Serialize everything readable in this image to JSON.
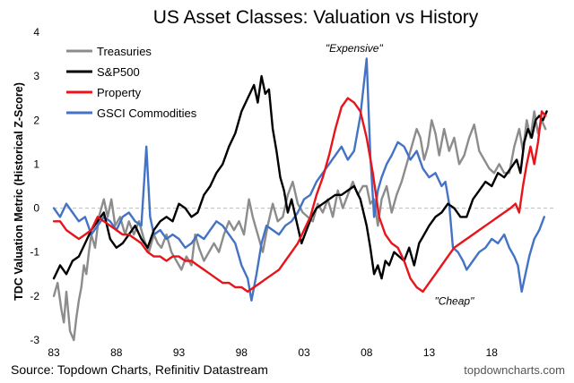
{
  "chart_data": {
    "type": "line",
    "title": "US Asset Classes: Valuation vs History",
    "ylabel": "TDC Valuation Metric (Historical Z-Score)",
    "xlabel": "",
    "xlim": [
      1983,
      2023
    ],
    "ylim": [
      -3,
      4
    ],
    "x_ticks": [
      {
        "value": 1983,
        "label": "83"
      },
      {
        "value": 1988,
        "label": "88"
      },
      {
        "value": 1993,
        "label": "93"
      },
      {
        "value": 1998,
        "label": "98"
      },
      {
        "value": 2003,
        "label": "03"
      },
      {
        "value": 2008,
        "label": "08"
      },
      {
        "value": 2013,
        "label": "13"
      },
      {
        "value": 2018,
        "label": "18"
      }
    ],
    "y_ticks": [
      {
        "value": 4,
        "label": "4"
      },
      {
        "value": 3,
        "label": "3"
      },
      {
        "value": 2,
        "label": "2"
      },
      {
        "value": 1,
        "label": "1"
      },
      {
        "value": 0,
        "label": "0"
      },
      {
        "value": -1,
        "label": "-1"
      },
      {
        "value": -2,
        "label": "-2"
      },
      {
        "value": -3,
        "label": "-3"
      }
    ],
    "legend_position": "top-left",
    "annotations": [
      {
        "text": "\"Expensive\"",
        "x": 2007,
        "y": 3.55
      },
      {
        "text": "\"Cheap\"",
        "x": 2015,
        "y": -2.2
      }
    ],
    "series": [
      {
        "name": "Treasuries",
        "color": "#8c8c8c",
        "x": [
          1983.0,
          1983.3,
          1983.6,
          1983.8,
          1984.0,
          1984.3,
          1984.6,
          1984.8,
          1985.0,
          1985.2,
          1985.4,
          1985.6,
          1985.8,
          1986.0,
          1986.3,
          1986.6,
          1987.0,
          1987.3,
          1987.6,
          1987.9,
          1988.3,
          1988.7,
          1989.0,
          1989.4,
          1989.8,
          1990.2,
          1990.6,
          1991.0,
          1991.3,
          1991.6,
          1992.0,
          1992.4,
          1992.8,
          1993.2,
          1993.6,
          1994.0,
          1994.3,
          1994.6,
          1995.0,
          1995.4,
          1995.8,
          1996.2,
          1996.6,
          1997.0,
          1997.4,
          1997.8,
          1998.2,
          1998.6,
          1998.9,
          1999.3,
          1999.7,
          2000.1,
          2000.5,
          2000.9,
          2001.3,
          2001.7,
          2002.1,
          2002.5,
          2002.9,
          2003.3,
          2003.7,
          2004.1,
          2004.5,
          2004.9,
          2005.3,
          2005.7,
          2006.1,
          2006.5,
          2006.9,
          2007.3,
          2007.7,
          2008.0,
          2008.3,
          2008.6,
          2008.9,
          2009.2,
          2009.6,
          2010.0,
          2010.4,
          2010.8,
          2011.2,
          2011.6,
          2012.0,
          2012.3,
          2012.6,
          2012.9,
          2013.2,
          2013.5,
          2013.8,
          2014.2,
          2014.6,
          2015.0,
          2015.4,
          2015.8,
          2016.2,
          2016.6,
          2017.0,
          2017.4,
          2017.8,
          2018.2,
          2018.6,
          2019.0,
          2019.4,
          2019.8,
          2020.2,
          2020.5,
          2020.8,
          2021.1,
          2021.4,
          2021.7,
          2022.0,
          2022.3
        ],
        "y": [
          -2.0,
          -1.7,
          -2.3,
          -2.6,
          -1.9,
          -2.8,
          -3.0,
          -2.5,
          -2.1,
          -1.8,
          -1.3,
          -1.5,
          -1.0,
          -0.6,
          -0.9,
          -0.2,
          0.2,
          -0.2,
          0.2,
          -0.4,
          -0.2,
          -0.6,
          -0.3,
          -0.6,
          -0.3,
          -0.7,
          -1.0,
          -0.6,
          -0.8,
          -0.9,
          -0.6,
          -1.0,
          -1.2,
          -1.4,
          -1.1,
          -1.3,
          -0.6,
          -0.9,
          -1.2,
          -1.0,
          -0.8,
          -1.0,
          -0.6,
          -0.3,
          -0.5,
          -0.3,
          -0.6,
          0.2,
          -0.2,
          -0.6,
          -1.0,
          -0.4,
          0.1,
          -0.3,
          -0.2,
          0.3,
          0.6,
          0.1,
          -0.1,
          -0.2,
          -0.3,
          0.1,
          -0.1,
          0.2,
          -0.2,
          0.4,
          0.0,
          0.3,
          0.6,
          0.3,
          0.5,
          0.5,
          0.1,
          0.2,
          -0.4,
          0.2,
          0.5,
          -0.1,
          0.3,
          0.6,
          1.0,
          1.4,
          1.8,
          1.6,
          1.1,
          1.4,
          2.0,
          1.7,
          1.2,
          1.8,
          1.3,
          1.6,
          1.0,
          1.2,
          1.6,
          1.9,
          1.3,
          1.1,
          0.9,
          0.8,
          1.0,
          0.8,
          0.8,
          1.4,
          1.8,
          1.3,
          2.0,
          1.6,
          2.2,
          1.7,
          2.0,
          1.8
        ]
      },
      {
        "name": "S&P500",
        "color": "#000000",
        "x": [
          1983.0,
          1983.5,
          1984.0,
          1984.5,
          1985.0,
          1985.5,
          1986.0,
          1986.5,
          1987.0,
          1987.5,
          1988.0,
          1988.5,
          1989.0,
          1989.5,
          1990.0,
          1990.5,
          1991.0,
          1991.5,
          1992.0,
          1992.5,
          1993.0,
          1993.5,
          1994.0,
          1994.5,
          1995.0,
          1995.5,
          1996.0,
          1996.5,
          1997.0,
          1997.5,
          1998.0,
          1998.5,
          1999.0,
          1999.3,
          1999.6,
          1999.9,
          2000.2,
          2000.5,
          2000.8,
          2001.1,
          2001.4,
          2001.7,
          2002.0,
          2002.4,
          2002.8,
          2003.2,
          2003.6,
          2004.0,
          2004.5,
          2005.0,
          2005.5,
          2006.0,
          2006.5,
          2007.0,
          2007.5,
          2008.0,
          2008.3,
          2008.6,
          2008.9,
          2009.2,
          2009.5,
          2009.8,
          2010.2,
          2010.6,
          2011.0,
          2011.4,
          2011.8,
          2012.2,
          2012.6,
          2013.0,
          2013.5,
          2014.0,
          2014.5,
          2015.0,
          2015.5,
          2016.0,
          2016.5,
          2017.0,
          2017.5,
          2018.0,
          2018.5,
          2019.0,
          2019.5,
          2020.0,
          2020.3,
          2020.6,
          2020.9,
          2021.2,
          2021.5,
          2021.8,
          2022.1,
          2022.4
        ],
        "y": [
          -1.6,
          -1.3,
          -1.5,
          -1.2,
          -1.1,
          -0.8,
          -0.5,
          -0.3,
          -0.1,
          -0.7,
          -0.9,
          -0.8,
          -0.6,
          -0.4,
          -0.7,
          -0.9,
          -0.5,
          -0.3,
          -0.2,
          -0.3,
          0.1,
          0.0,
          -0.2,
          -0.1,
          0.3,
          0.5,
          0.8,
          1.0,
          1.4,
          1.7,
          2.2,
          2.5,
          2.8,
          2.4,
          3.0,
          2.6,
          2.7,
          1.8,
          1.3,
          0.7,
          0.4,
          -0.1,
          0.2,
          -0.3,
          -0.8,
          -0.5,
          -0.2,
          0.0,
          0.1,
          0.2,
          0.3,
          0.3,
          0.4,
          0.5,
          0.2,
          -0.4,
          -0.9,
          -1.5,
          -1.3,
          -1.6,
          -1.2,
          -1.3,
          -1.0,
          -1.1,
          -1.2,
          -0.9,
          -1.3,
          -0.8,
          -0.6,
          -0.4,
          -0.2,
          -0.1,
          0.1,
          0.0,
          -0.2,
          -0.2,
          0.2,
          0.4,
          0.6,
          0.5,
          0.8,
          0.7,
          0.9,
          1.1,
          0.8,
          1.5,
          1.8,
          1.6,
          2.0,
          2.1,
          2.0,
          2.2
        ]
      },
      {
        "name": "Property",
        "color": "#e8141b",
        "x": [
          1983.0,
          1983.5,
          1984.0,
          1984.5,
          1985.0,
          1985.5,
          1986.0,
          1986.5,
          1987.0,
          1987.5,
          1988.0,
          1988.5,
          1989.0,
          1989.5,
          1990.0,
          1990.5,
          1991.0,
          1991.5,
          1992.0,
          1992.5,
          1993.0,
          1993.5,
          1994.0,
          1994.5,
          1995.0,
          1995.5,
          1996.0,
          1996.5,
          1997.0,
          1997.5,
          1998.0,
          1998.5,
          1999.0,
          1999.5,
          2000.0,
          2000.5,
          2001.0,
          2001.5,
          2002.0,
          2002.5,
          2003.0,
          2003.5,
          2004.0,
          2004.5,
          2005.0,
          2005.5,
          2006.0,
          2006.5,
          2007.0,
          2007.5,
          2008.0,
          2008.5,
          2009.0,
          2009.5,
          2010.0,
          2010.5,
          2011.0,
          2011.5,
          2012.0,
          2012.5,
          2013.0,
          2013.5,
          2014.0,
          2014.5,
          2015.0,
          2015.5,
          2016.0,
          2016.5,
          2017.0,
          2017.5,
          2018.0,
          2018.5,
          2019.0,
          2019.5,
          2019.9,
          2020.2,
          2020.5,
          2020.8,
          2021.1,
          2021.4,
          2021.7,
          2022.0,
          2022.3
        ],
        "y": [
          -0.3,
          -0.3,
          -0.5,
          -0.6,
          -0.7,
          -0.6,
          -0.5,
          -0.2,
          -0.3,
          -0.4,
          -0.5,
          -0.6,
          -0.6,
          -0.7,
          -0.8,
          -1.0,
          -1.1,
          -1.1,
          -1.2,
          -1.1,
          -1.1,
          -1.2,
          -1.2,
          -1.3,
          -1.4,
          -1.5,
          -1.6,
          -1.7,
          -1.7,
          -1.8,
          -1.8,
          -1.9,
          -1.8,
          -1.7,
          -1.6,
          -1.5,
          -1.4,
          -1.2,
          -1.0,
          -0.8,
          -0.5,
          -0.2,
          0.3,
          0.7,
          1.2,
          1.8,
          2.3,
          2.5,
          2.4,
          2.2,
          1.6,
          0.8,
          -0.2,
          -0.6,
          -0.8,
          -0.9,
          -1.2,
          -1.6,
          -1.8,
          -1.9,
          -1.7,
          -1.5,
          -1.3,
          -1.1,
          -0.9,
          -0.8,
          -0.7,
          -0.6,
          -0.5,
          -0.4,
          -0.3,
          -0.2,
          -0.1,
          0.0,
          0.1,
          -0.1,
          0.5,
          1.0,
          1.4,
          1.0,
          1.5,
          2.2,
          2.1
        ]
      },
      {
        "name": "GSCI Commodities",
        "color": "#4472c4",
        "x": [
          1983.0,
          1983.5,
          1984.0,
          1984.5,
          1985.0,
          1985.5,
          1986.0,
          1986.5,
          1987.0,
          1987.5,
          1988.0,
          1988.5,
          1989.0,
          1989.5,
          1990.0,
          1990.4,
          1990.7,
          1991.0,
          1991.5,
          1992.0,
          1992.5,
          1993.0,
          1993.5,
          1994.0,
          1994.5,
          1995.0,
          1995.5,
          1996.0,
          1996.5,
          1997.0,
          1997.5,
          1998.0,
          1998.5,
          1998.8,
          1999.2,
          1999.6,
          2000.0,
          2000.5,
          2001.0,
          2001.5,
          2002.0,
          2002.5,
          2003.0,
          2003.5,
          2004.0,
          2004.5,
          2005.0,
          2005.5,
          2006.0,
          2006.5,
          2007.0,
          2007.5,
          2008.0,
          2008.3,
          2008.6,
          2008.9,
          2009.2,
          2009.6,
          2010.0,
          2010.5,
          2011.0,
          2011.5,
          2012.0,
          2012.5,
          2013.0,
          2013.5,
          2014.0,
          2014.3,
          2014.6,
          2014.9,
          2015.3,
          2015.7,
          2016.0,
          2016.5,
          2017.0,
          2017.5,
          2018.0,
          2018.5,
          2019.0,
          2019.4,
          2019.8,
          2020.1,
          2020.4,
          2020.7,
          2021.0,
          2021.4,
          2021.8,
          2022.2
        ],
        "y": [
          0.0,
          -0.2,
          0.1,
          -0.1,
          -0.3,
          -0.2,
          -0.6,
          -0.4,
          -0.2,
          -0.3,
          -0.5,
          -0.2,
          -0.1,
          -0.3,
          -0.4,
          1.4,
          -0.2,
          -0.6,
          -0.5,
          -0.7,
          -0.6,
          -0.7,
          -0.9,
          -0.8,
          -0.6,
          -0.7,
          -0.5,
          -0.3,
          -0.4,
          -0.6,
          -0.8,
          -1.3,
          -1.6,
          -2.1,
          -1.5,
          -0.8,
          -0.4,
          -0.5,
          -0.6,
          -0.4,
          -0.3,
          -0.1,
          0.2,
          0.3,
          0.6,
          0.8,
          1.0,
          1.2,
          1.4,
          1.1,
          1.3,
          2.1,
          3.4,
          1.2,
          -0.2,
          0.4,
          0.7,
          1.0,
          1.2,
          1.5,
          1.4,
          1.1,
          1.3,
          0.9,
          0.7,
          0.8,
          0.5,
          0.6,
          0.1,
          -0.9,
          -1.0,
          -1.2,
          -1.4,
          -1.2,
          -1.0,
          -0.9,
          -0.7,
          -0.8,
          -0.6,
          -0.9,
          -1.1,
          -1.3,
          -1.9,
          -1.5,
          -1.1,
          -0.7,
          -0.5,
          -0.2
        ]
      }
    ]
  },
  "source": "Source: Topdown Charts, Refinitiv Datastream",
  "brand": "topdowncharts.com"
}
